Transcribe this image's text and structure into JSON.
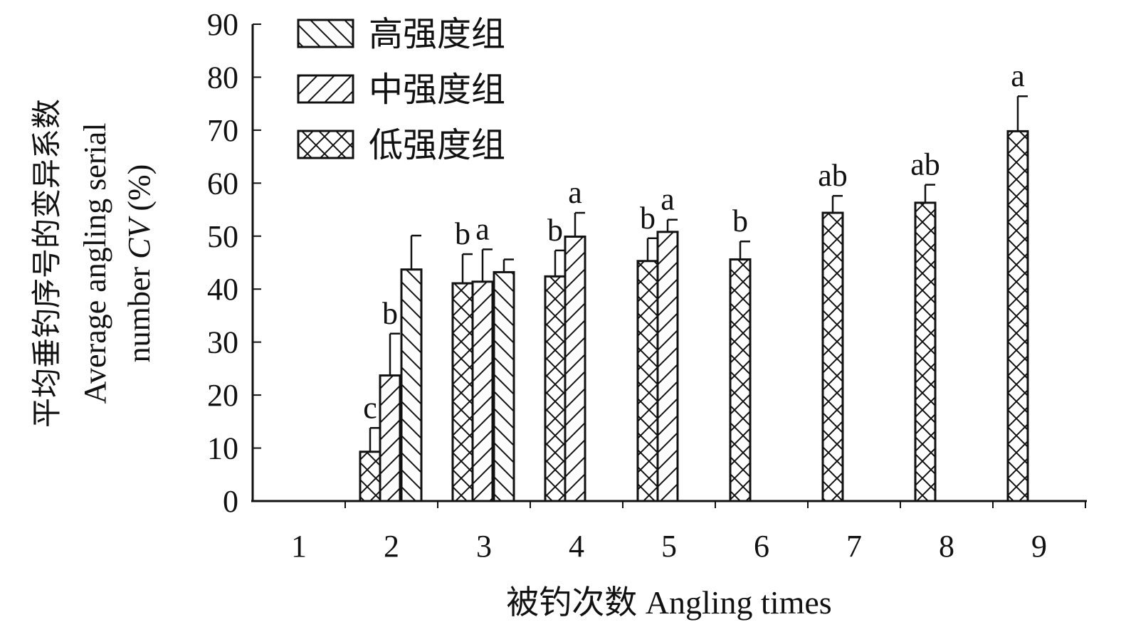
{
  "chart_data": {
    "type": "bar",
    "y_label": {
      "zh": "平均垂钓序号的变异系数",
      "en": [
        "Average angling serial",
        "number",
        "CV",
        "(%)"
      ]
    },
    "x_label": "被钓次数 Angling times",
    "categories": [
      "1",
      "2",
      "3",
      "4",
      "5",
      "6",
      "7",
      "8",
      "9"
    ],
    "series": [
      {
        "name": "高强度组",
        "color": "#ffffff",
        "hatch": "back",
        "values": [
          null,
          43.7,
          43.2,
          null,
          null,
          null,
          null,
          null,
          null
        ],
        "errors": [
          null,
          6.4,
          2.4,
          null,
          null,
          null,
          null,
          null,
          null
        ],
        "letters": [
          null,
          null,
          null,
          null,
          null,
          null,
          null,
          null,
          null
        ]
      },
      {
        "name": "中强度组",
        "color": "#ffffff",
        "hatch": "fwd",
        "values": [
          null,
          23.7,
          41.4,
          49.9,
          50.8,
          null,
          null,
          null,
          null
        ],
        "errors": [
          null,
          7.9,
          6.1,
          4.5,
          2.3,
          null,
          null,
          null,
          null
        ],
        "letters": [
          null,
          "b",
          "a",
          "a",
          "a",
          null,
          null,
          null,
          null
        ]
      },
      {
        "name": "低强度组",
        "color": "#ffffff",
        "hatch": "cross",
        "values": [
          null,
          9.3,
          41.1,
          42.4,
          45.3,
          45.6,
          54.4,
          56.3,
          69.8
        ],
        "errors": [
          null,
          4.5,
          5.5,
          4.9,
          4.3,
          3.4,
          3.2,
          3.4,
          6.6
        ],
        "letters": [
          null,
          "c",
          "b",
          "b",
          "b",
          "b",
          "ab",
          "ab",
          "a"
        ]
      }
    ],
    "ylim": [
      0,
      90
    ],
    "yticks": [
      0,
      10,
      20,
      30,
      40,
      50,
      60,
      70,
      80,
      90
    ],
    "grid": false
  }
}
